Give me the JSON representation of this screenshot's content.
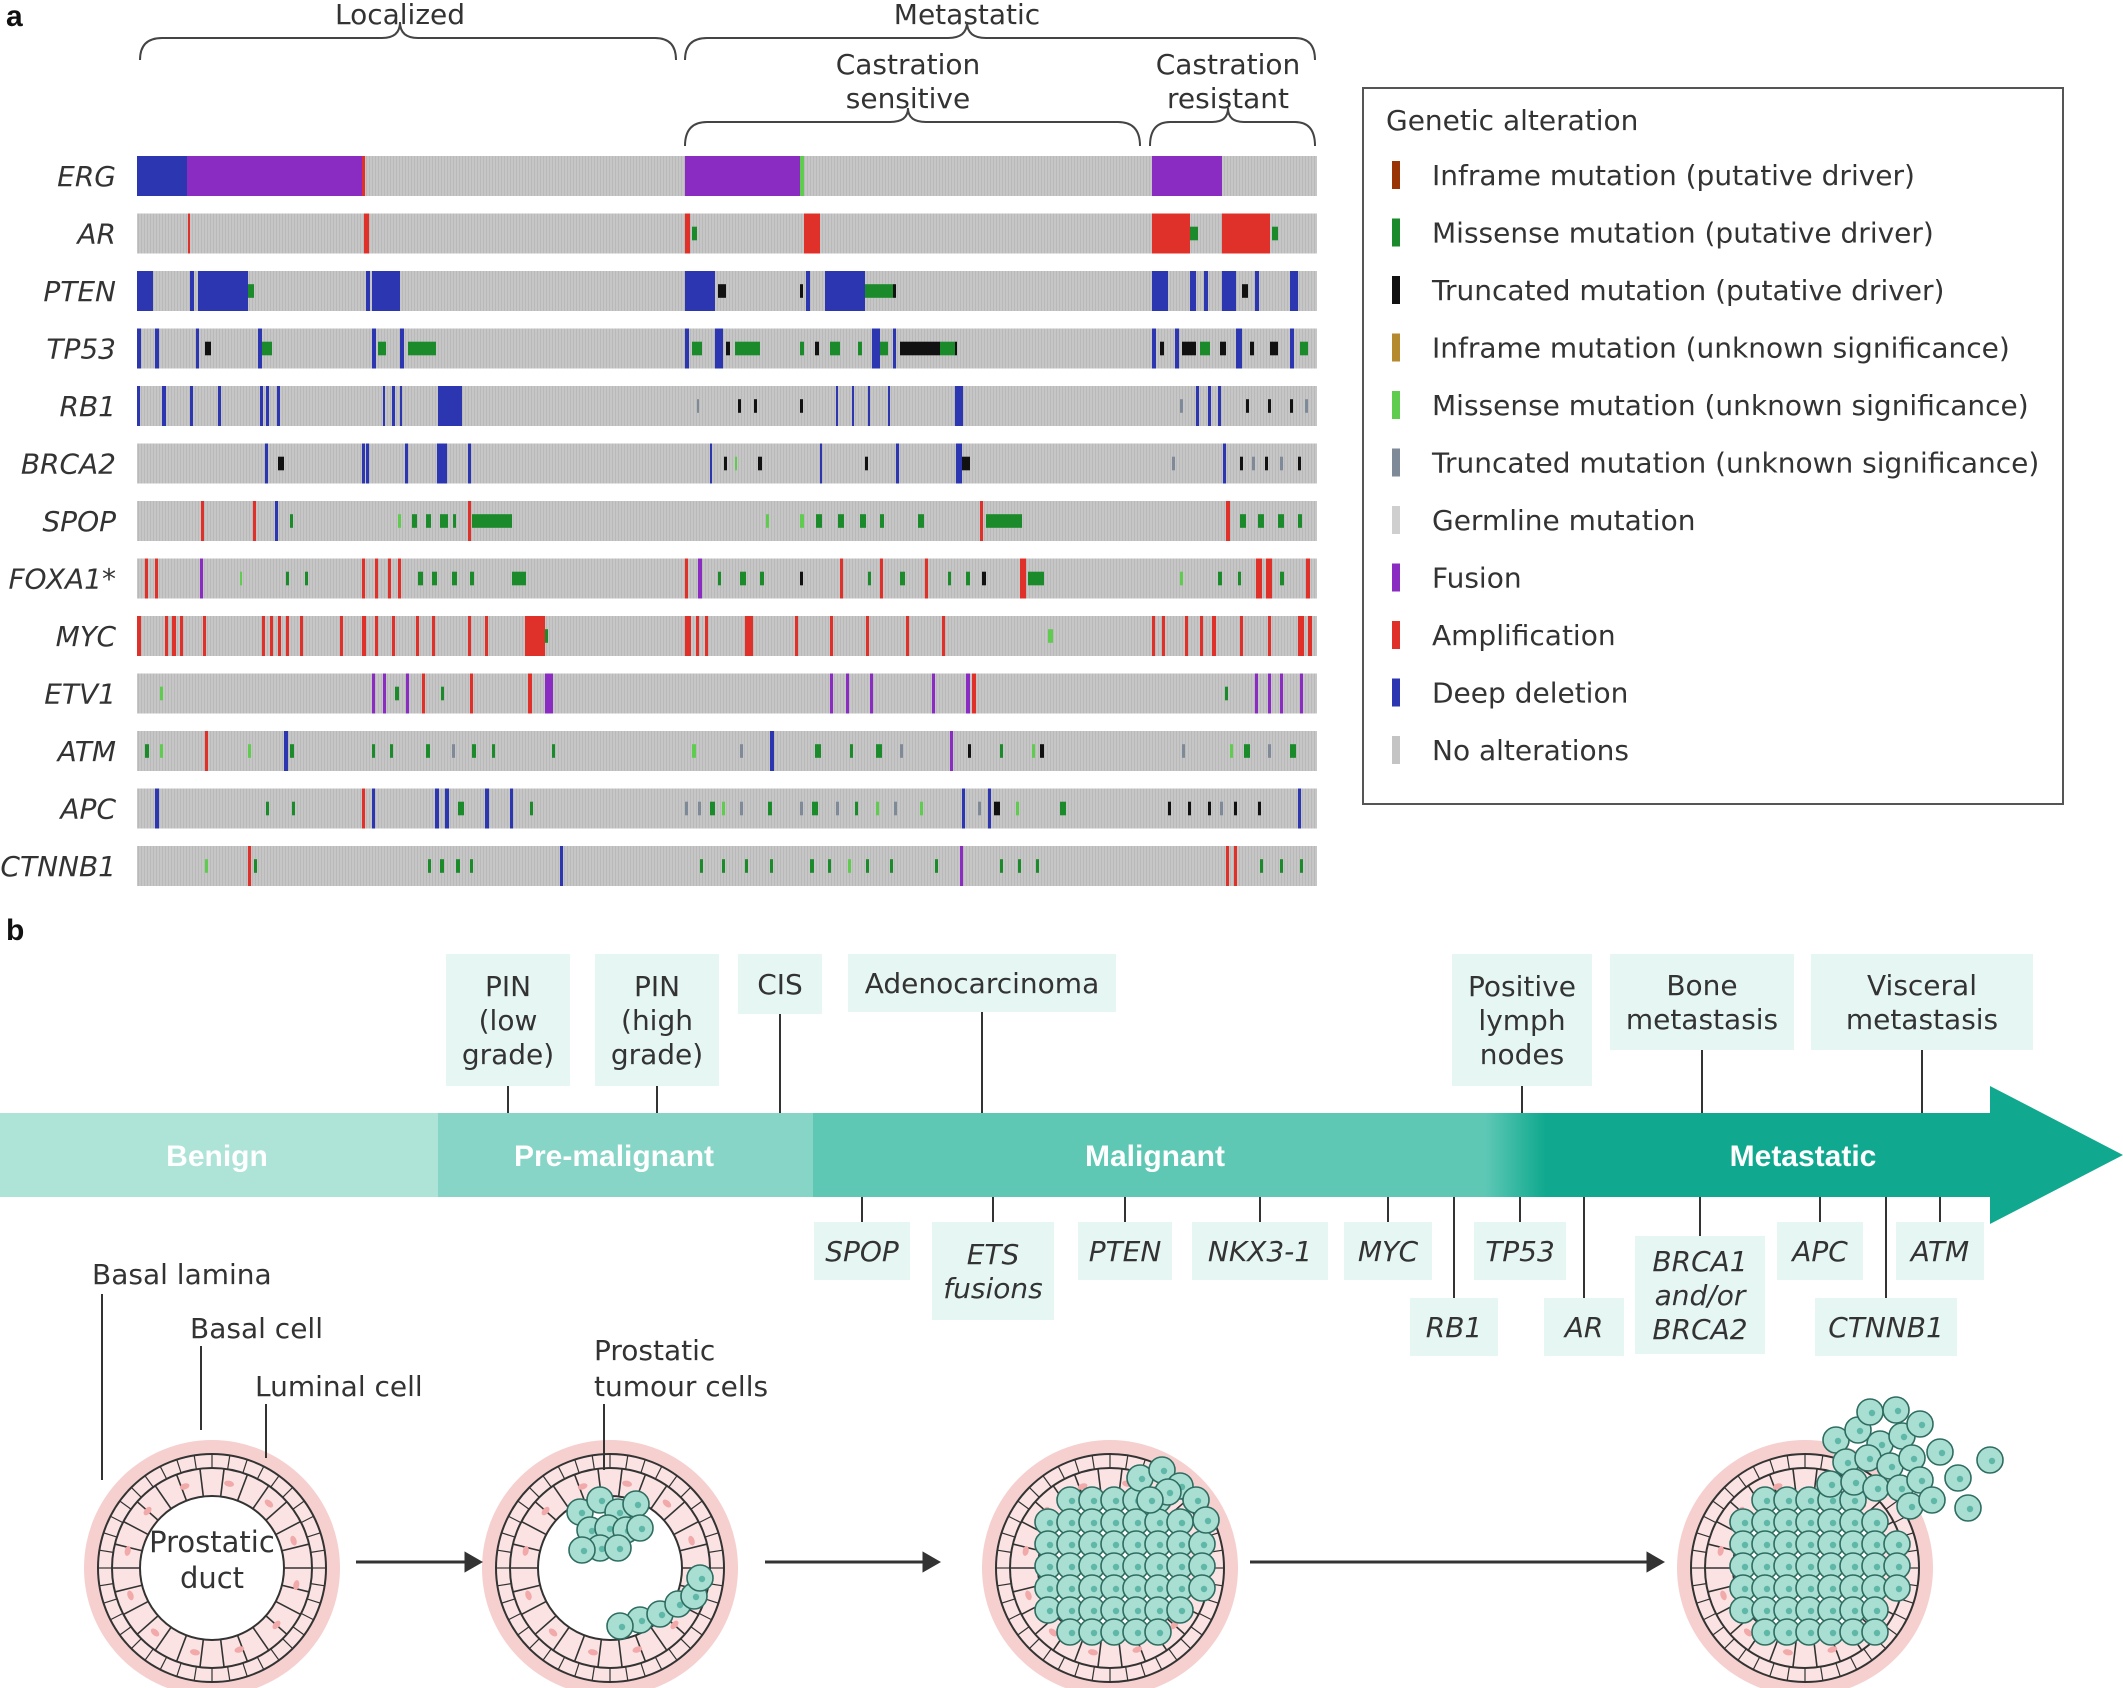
{
  "panels": {
    "a": "a",
    "b": "b"
  },
  "groups": {
    "localized": "Localized",
    "metastatic": "Metastatic",
    "castration_sensitive": [
      "Castration",
      "sensitive"
    ],
    "castration_resistant": [
      "Castration",
      "resistant"
    ]
  },
  "genes": [
    "ERG",
    "AR",
    "PTEN",
    "TP53",
    "RB1",
    "BRCA2",
    "SPOP",
    "FOXA1*",
    "MYC",
    "ETV1",
    "ATM",
    "APC",
    "CTNNB1"
  ],
  "legend": {
    "title": "Genetic alteration",
    "items": [
      {
        "label": "Inframe mutation (putative driver)",
        "color": "#993404"
      },
      {
        "label": "Missense mutation (putative driver)",
        "color": "#1a8a2a"
      },
      {
        "label": "Truncated mutation (putative driver)",
        "color": "#111111"
      },
      {
        "label": "Inframe mutation (unknown significance)",
        "color": "#b58a2e"
      },
      {
        "label": "Missense mutation (unknown significance)",
        "color": "#5fcb4f"
      },
      {
        "label": "Truncated mutation (unknown significance)",
        "color": "#7f8a99"
      },
      {
        "label": "Germline mutation",
        "color": "#cfcfcf"
      },
      {
        "label": "Fusion",
        "color": "#8a2bc2"
      },
      {
        "label": "Amplification",
        "color": "#e0302a"
      },
      {
        "label": "Deep deletion",
        "color": "#2b36b0"
      },
      {
        "label": "No alterations",
        "color": "#c4c4c4"
      }
    ]
  },
  "stages": [
    "Benign",
    "Pre-malignant",
    "Malignant",
    "Metastatic"
  ],
  "pathology_labels": [
    [
      "PIN",
      "(low",
      "grade)"
    ],
    [
      "PIN",
      "(high",
      "grade)"
    ],
    [
      "CIS"
    ],
    [
      "Adenocarcinoma"
    ],
    [
      "Positive",
      "lymph",
      "nodes"
    ],
    [
      "Bone",
      "metastasis"
    ],
    [
      "Visceral",
      "metastasis"
    ]
  ],
  "gene_events": [
    [
      "SPOP"
    ],
    [
      "ETS",
      "fusions"
    ],
    [
      "PTEN"
    ],
    [
      "NKX3-1"
    ],
    [
      "MYC"
    ],
    [
      "RB1"
    ],
    [
      "TP53"
    ],
    [
      "AR"
    ],
    [
      "BRCA1",
      "and/or",
      "BRCA2"
    ],
    [
      "APC"
    ],
    [
      "CTNNB1"
    ],
    [
      "ATM"
    ]
  ],
  "cell_labels": {
    "basal_lamina": "Basal lamina",
    "basal_cell": "Basal cell",
    "luminal_cell": "Luminal cell",
    "prostatic_duct": [
      "Prostatic",
      "duct"
    ],
    "tumour_cells": [
      "Prostatic",
      "tumour cells"
    ]
  },
  "colors": {
    "track_gray": "#c4c4c4",
    "box_fill": "#e6f7f3",
    "benign": "#aee3d8",
    "pre_malignant": "#86d5c6",
    "malignant": "#5ec8b5",
    "metastatic": "#10a98f",
    "tumour_cell": "#a9ded2",
    "tissue_pink": "#f6cfcf"
  }
}
